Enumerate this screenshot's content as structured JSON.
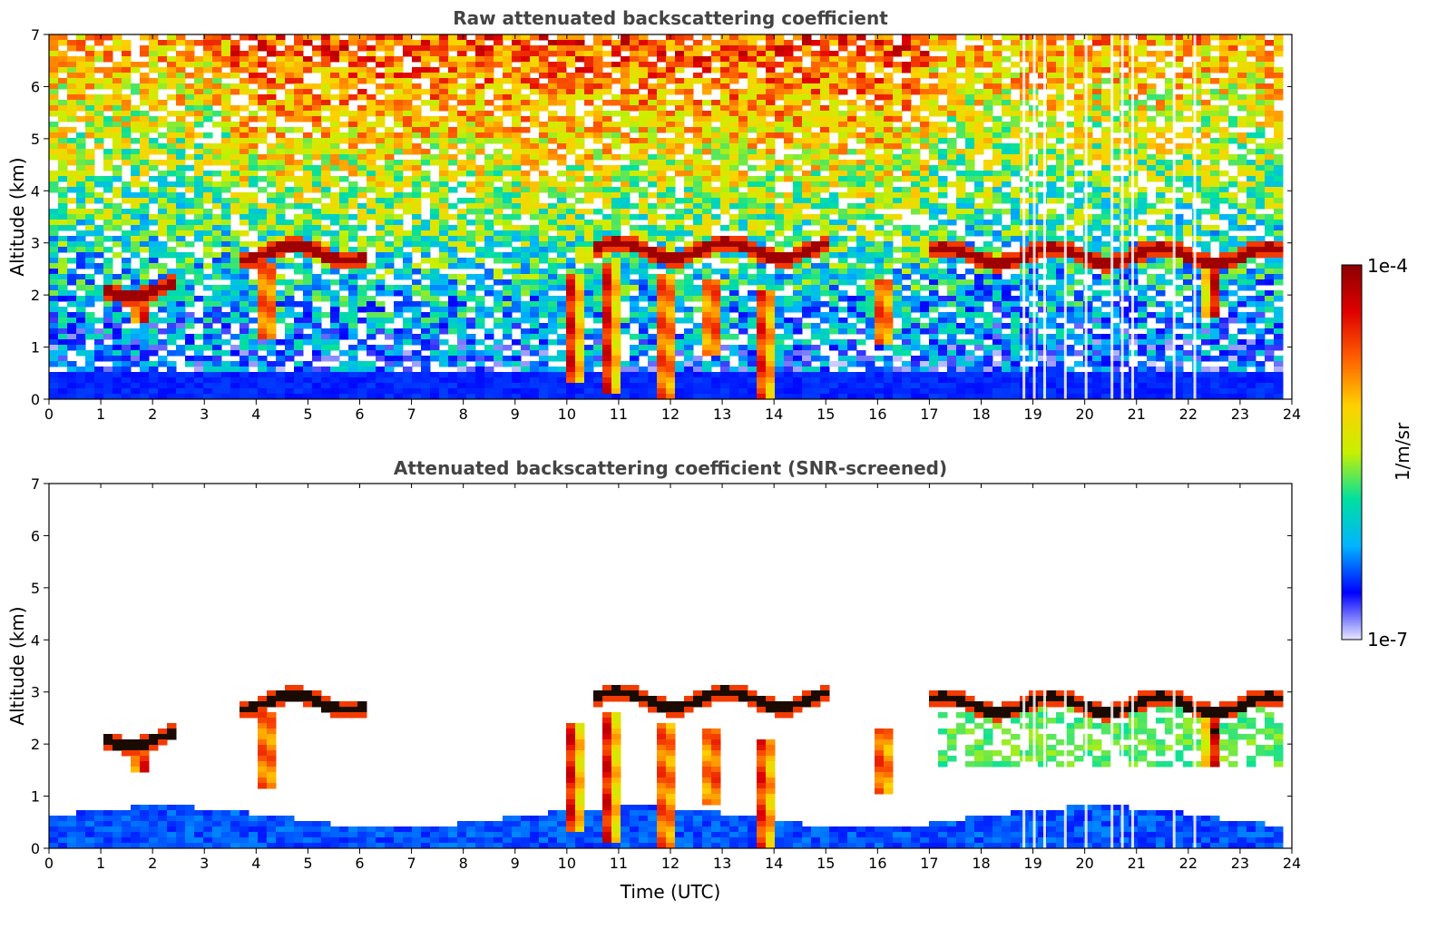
{
  "chart_data": [
    {
      "type": "heatmap",
      "title": "Raw attenuated backscattering coefficient",
      "xlabel": "",
      "ylabel": "Altitude (km)",
      "xlim": [
        0,
        24
      ],
      "ylim": [
        0,
        7
      ],
      "xticks": [
        "0",
        "1",
        "2",
        "3",
        "4",
        "5",
        "6",
        "7",
        "8",
        "9",
        "10",
        "11",
        "12",
        "13",
        "14",
        "15",
        "16",
        "17",
        "18",
        "19",
        "20",
        "21",
        "22",
        "23",
        "24"
      ],
      "yticks": [
        "0",
        "1",
        "2",
        "3",
        "4",
        "5",
        "6",
        "7"
      ],
      "data_end_hour": 23.8,
      "cloud_layers": [
        {
          "t_start": 3.6,
          "t_end": 6.2,
          "altitude": 2.8
        },
        {
          "t_start": 10.5,
          "t_end": 15.0,
          "altitude": 2.85
        },
        {
          "t_start": 17.0,
          "t_end": 23.8,
          "altitude": 2.75
        },
        {
          "t_start": 1.0,
          "t_end": 2.5,
          "altitude": 2.1
        }
      ],
      "precip_columns": [
        {
          "time": 1.8,
          "top": 2.0,
          "bottom": 1.5
        },
        {
          "time": 4.2,
          "top": 2.6,
          "bottom": 1.2
        },
        {
          "time": 10.1,
          "top": 2.4,
          "bottom": 0.3
        },
        {
          "time": 10.8,
          "top": 2.6,
          "bottom": 0.1
        },
        {
          "time": 11.9,
          "top": 2.4,
          "bottom": 0.0
        },
        {
          "time": 12.8,
          "top": 2.3,
          "bottom": 0.8
        },
        {
          "time": 13.8,
          "top": 2.1,
          "bottom": 0.0
        },
        {
          "time": 16.1,
          "top": 2.3,
          "bottom": 1.0
        },
        {
          "time": 22.5,
          "top": 2.6,
          "bottom": 1.6
        }
      ],
      "gaps_hours": [
        18.8,
        19.0,
        19.2,
        19.6,
        20.0,
        20.5,
        20.7,
        20.9,
        21.7,
        22.1
      ]
    },
    {
      "type": "heatmap",
      "title": "Attenuated backscattering coefficient (SNR-screened)",
      "xlabel": "Time (UTC)",
      "ylabel": "Altitude (km)",
      "xlim": [
        0,
        24
      ],
      "ylim": [
        0,
        7
      ],
      "xticks": [
        "0",
        "1",
        "2",
        "3",
        "4",
        "5",
        "6",
        "7",
        "8",
        "9",
        "10",
        "11",
        "12",
        "13",
        "14",
        "15",
        "16",
        "17",
        "18",
        "19",
        "20",
        "21",
        "22",
        "23",
        "24"
      ],
      "yticks": [
        "0",
        "1",
        "2",
        "3",
        "4",
        "5",
        "6",
        "7"
      ]
    }
  ],
  "colorbar": {
    "label": "1/m/sr",
    "max_label": "1e-4",
    "min_label": "1e-7",
    "scale": "log",
    "colormap": [
      "#e6e6ff",
      "#0000ff",
      "#00b4ff",
      "#00e0a0",
      "#c8f000",
      "#ffd000",
      "#ff6000",
      "#e00000",
      "#8b0000"
    ]
  }
}
